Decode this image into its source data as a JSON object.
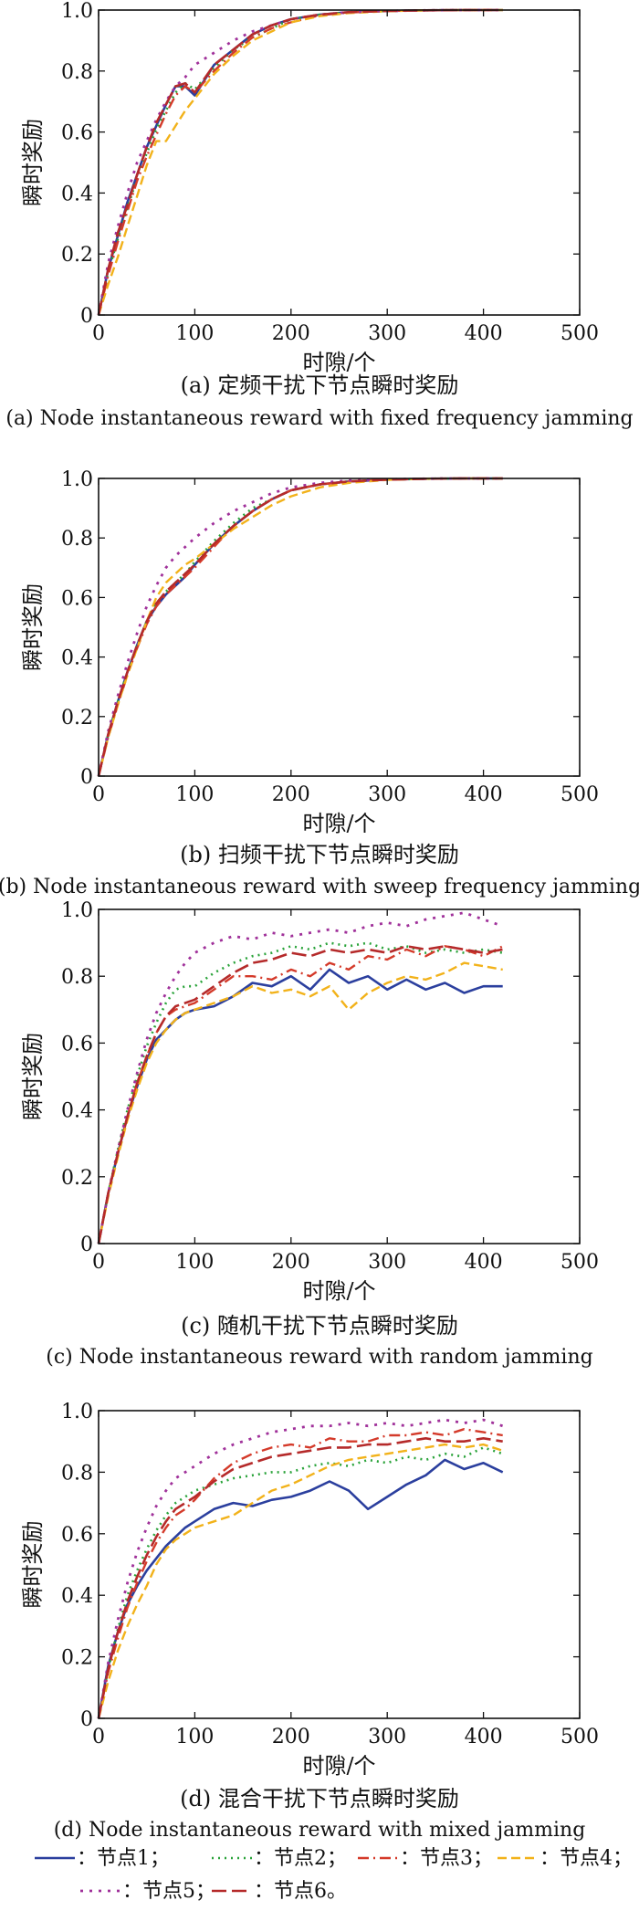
{
  "series_styles": [
    {
      "key": "n1",
      "color": "#2b3f9e",
      "dash": "",
      "width": 2.6
    },
    {
      "key": "n2",
      "color": "#2aa33a",
      "dash": "2,5",
      "width": 2.6
    },
    {
      "key": "n3",
      "color": "#d43a2a",
      "dash": "12,5,2,5",
      "width": 2.4
    },
    {
      "key": "n4",
      "color": "#f2b21a",
      "dash": "10,5",
      "width": 2.4
    },
    {
      "key": "n5",
      "color": "#a0319a",
      "dash": "3,7",
      "width": 2.8
    },
    {
      "key": "n6",
      "color": "#b52a2a",
      "dash": "16,6",
      "width": 2.6
    }
  ],
  "legend": {
    "items": [
      {
        "key": "n1",
        "label": "：节点1；"
      },
      {
        "key": "n2",
        "label": "：节点2；"
      },
      {
        "key": "n3",
        "label": "：节点3；"
      },
      {
        "key": "n4",
        "label": "：节点4；"
      },
      {
        "key": "n5",
        "label": "：节点5；"
      },
      {
        "key": "n6",
        "label": "：节点6。"
      }
    ]
  },
  "chart_data": [
    {
      "type": "line",
      "caption_cn": "(a) 定频干扰下节点瞬时奖励",
      "caption_en": "(a) Node instantaneous reward with fixed frequency jamming",
      "xlabel": "时隙/个",
      "ylabel": "瞬时奖励",
      "xlim": [
        0,
        500
      ],
      "ylim": [
        0,
        1.0
      ],
      "xticks": [
        "0",
        "100",
        "200",
        "300",
        "400",
        "500"
      ],
      "yticks": [
        "0",
        "0.2",
        "0.4",
        "0.6",
        "0.8",
        "1.0"
      ],
      "x": [
        0,
        10,
        20,
        30,
        40,
        50,
        60,
        70,
        80,
        90,
        100,
        120,
        140,
        160,
        180,
        200,
        230,
        260,
        300,
        340,
        380,
        420
      ],
      "series": [
        {
          "key": "n1",
          "values": [
            0.0,
            0.15,
            0.26,
            0.37,
            0.46,
            0.55,
            0.62,
            0.69,
            0.75,
            0.75,
            0.72,
            0.82,
            0.87,
            0.92,
            0.95,
            0.97,
            0.985,
            0.993,
            0.997,
            0.999,
            1.0,
            1.0
          ]
        },
        {
          "key": "n2",
          "values": [
            0.0,
            0.14,
            0.25,
            0.35,
            0.45,
            0.53,
            0.61,
            0.67,
            0.73,
            0.76,
            0.74,
            0.81,
            0.87,
            0.91,
            0.94,
            0.97,
            0.985,
            0.993,
            0.997,
            0.999,
            1.0,
            1.0
          ]
        },
        {
          "key": "n3",
          "values": [
            0.0,
            0.13,
            0.24,
            0.34,
            0.44,
            0.52,
            0.59,
            0.66,
            0.72,
            0.75,
            0.73,
            0.8,
            0.86,
            0.91,
            0.94,
            0.96,
            0.983,
            0.992,
            0.997,
            0.999,
            1.0,
            1.0
          ]
        },
        {
          "key": "n4",
          "values": [
            0.0,
            0.1,
            0.19,
            0.29,
            0.39,
            0.49,
            0.57,
            0.57,
            0.62,
            0.67,
            0.71,
            0.79,
            0.85,
            0.9,
            0.93,
            0.96,
            0.98,
            0.99,
            0.996,
            0.999,
            1.0,
            1.0
          ]
        },
        {
          "key": "n5",
          "values": [
            0.0,
            0.17,
            0.29,
            0.4,
            0.5,
            0.57,
            0.64,
            0.7,
            0.75,
            0.78,
            0.82,
            0.86,
            0.9,
            0.93,
            0.95,
            0.97,
            0.985,
            0.993,
            0.997,
            0.999,
            1.0,
            1.0
          ]
        },
        {
          "key": "n6",
          "values": [
            0.0,
            0.15,
            0.27,
            0.36,
            0.46,
            0.55,
            0.63,
            0.69,
            0.75,
            0.76,
            0.73,
            0.82,
            0.87,
            0.92,
            0.95,
            0.97,
            0.985,
            0.993,
            0.997,
            0.999,
            1.0,
            1.0
          ]
        }
      ]
    },
    {
      "type": "line",
      "caption_cn": "(b) 扫频干扰下节点瞬时奖励",
      "caption_en": "(b) Node instantaneous reward with sweep frequency jamming",
      "xlabel": "时隙/个",
      "ylabel": "瞬时奖励",
      "xlim": [
        0,
        500
      ],
      "ylim": [
        0,
        1.0
      ],
      "xticks": [
        "0",
        "100",
        "200",
        "300",
        "400",
        "500"
      ],
      "yticks": [
        "0",
        "0.2",
        "0.4",
        "0.6",
        "0.8",
        "1.0"
      ],
      "x": [
        0,
        10,
        20,
        30,
        40,
        50,
        60,
        70,
        80,
        90,
        100,
        120,
        140,
        160,
        180,
        200,
        230,
        260,
        300,
        340,
        380,
        420
      ],
      "series": [
        {
          "key": "n1",
          "values": [
            0.0,
            0.14,
            0.25,
            0.35,
            0.44,
            0.52,
            0.57,
            0.61,
            0.64,
            0.67,
            0.71,
            0.78,
            0.84,
            0.89,
            0.93,
            0.96,
            0.98,
            0.99,
            0.996,
            0.999,
            1.0,
            1.0
          ]
        },
        {
          "key": "n2",
          "values": [
            0.0,
            0.14,
            0.25,
            0.35,
            0.44,
            0.52,
            0.58,
            0.62,
            0.65,
            0.68,
            0.72,
            0.79,
            0.85,
            0.9,
            0.93,
            0.96,
            0.98,
            0.99,
            0.996,
            0.999,
            1.0,
            1.0
          ]
        },
        {
          "key": "n3",
          "values": [
            0.0,
            0.13,
            0.24,
            0.34,
            0.43,
            0.51,
            0.57,
            0.61,
            0.64,
            0.67,
            0.7,
            0.77,
            0.84,
            0.89,
            0.93,
            0.96,
            0.98,
            0.99,
            0.996,
            0.999,
            1.0,
            1.0
          ]
        },
        {
          "key": "n4",
          "values": [
            0.0,
            0.13,
            0.24,
            0.34,
            0.43,
            0.52,
            0.6,
            0.65,
            0.68,
            0.71,
            0.73,
            0.78,
            0.83,
            0.87,
            0.91,
            0.94,
            0.97,
            0.985,
            0.995,
            0.999,
            1.0,
            1.0
          ]
        },
        {
          "key": "n5",
          "values": [
            0.0,
            0.15,
            0.27,
            0.38,
            0.48,
            0.57,
            0.64,
            0.7,
            0.74,
            0.77,
            0.8,
            0.85,
            0.89,
            0.92,
            0.95,
            0.97,
            0.985,
            0.993,
            0.997,
            0.999,
            1.0,
            1.0
          ]
        },
        {
          "key": "n6",
          "values": [
            0.0,
            0.14,
            0.25,
            0.35,
            0.44,
            0.52,
            0.58,
            0.62,
            0.65,
            0.68,
            0.71,
            0.78,
            0.84,
            0.89,
            0.93,
            0.96,
            0.98,
            0.99,
            0.996,
            0.999,
            1.0,
            1.0
          ]
        }
      ]
    },
    {
      "type": "line",
      "caption_cn": "(c) 随机干扰下节点瞬时奖励",
      "caption_en": "(c) Node instantaneous reward with random jamming",
      "xlabel": "时隙/个",
      "ylabel": "瞬时奖励",
      "xlim": [
        0,
        500
      ],
      "ylim": [
        0,
        1.0
      ],
      "xticks": [
        "0",
        "100",
        "200",
        "300",
        "400",
        "500"
      ],
      "yticks": [
        "0",
        "0.2",
        "0.4",
        "0.6",
        "0.8",
        "1.0"
      ],
      "x": [
        0,
        10,
        20,
        30,
        40,
        50,
        60,
        70,
        80,
        90,
        100,
        120,
        140,
        160,
        180,
        200,
        220,
        240,
        260,
        280,
        300,
        320,
        340,
        360,
        380,
        400,
        420
      ],
      "series": [
        {
          "key": "n1",
          "values": [
            0.0,
            0.15,
            0.27,
            0.38,
            0.47,
            0.55,
            0.61,
            0.64,
            0.67,
            0.69,
            0.7,
            0.71,
            0.74,
            0.78,
            0.77,
            0.8,
            0.76,
            0.82,
            0.78,
            0.8,
            0.76,
            0.79,
            0.76,
            0.78,
            0.75,
            0.77,
            0.77
          ]
        },
        {
          "key": "n2",
          "values": [
            0.0,
            0.15,
            0.28,
            0.4,
            0.5,
            0.59,
            0.66,
            0.72,
            0.76,
            0.77,
            0.77,
            0.81,
            0.84,
            0.86,
            0.87,
            0.89,
            0.88,
            0.9,
            0.89,
            0.9,
            0.88,
            0.89,
            0.87,
            0.88,
            0.87,
            0.88,
            0.87
          ]
        },
        {
          "key": "n3",
          "values": [
            0.0,
            0.15,
            0.27,
            0.38,
            0.48,
            0.56,
            0.63,
            0.68,
            0.7,
            0.71,
            0.72,
            0.76,
            0.8,
            0.8,
            0.79,
            0.82,
            0.8,
            0.84,
            0.82,
            0.86,
            0.85,
            0.88,
            0.86,
            0.89,
            0.88,
            0.86,
            0.89
          ]
        },
        {
          "key": "n4",
          "values": [
            0.0,
            0.14,
            0.26,
            0.37,
            0.46,
            0.54,
            0.6,
            0.64,
            0.67,
            0.69,
            0.7,
            0.72,
            0.74,
            0.77,
            0.75,
            0.76,
            0.74,
            0.77,
            0.7,
            0.75,
            0.78,
            0.8,
            0.79,
            0.81,
            0.84,
            0.83,
            0.82
          ]
        },
        {
          "key": "n5",
          "values": [
            0.0,
            0.15,
            0.28,
            0.4,
            0.51,
            0.61,
            0.69,
            0.75,
            0.8,
            0.84,
            0.87,
            0.9,
            0.92,
            0.91,
            0.93,
            0.92,
            0.93,
            0.94,
            0.93,
            0.95,
            0.96,
            0.95,
            0.97,
            0.98,
            0.99,
            0.97,
            0.95
          ]
        },
        {
          "key": "n6",
          "values": [
            0.0,
            0.15,
            0.27,
            0.38,
            0.48,
            0.56,
            0.63,
            0.68,
            0.71,
            0.72,
            0.73,
            0.77,
            0.81,
            0.84,
            0.85,
            0.87,
            0.86,
            0.88,
            0.87,
            0.88,
            0.87,
            0.89,
            0.88,
            0.89,
            0.88,
            0.87,
            0.88
          ]
        }
      ]
    },
    {
      "type": "line",
      "caption_cn": "(d) 混合干扰下节点瞬时奖励",
      "caption_en": "(d) Node instantaneous reward with mixed jamming",
      "xlabel": "时隙/个",
      "ylabel": "瞬时奖励",
      "xlim": [
        0,
        500
      ],
      "ylim": [
        0,
        1.0
      ],
      "xticks": [
        "0",
        "100",
        "200",
        "300",
        "400",
        "500"
      ],
      "yticks": [
        "0",
        "0.2",
        "0.4",
        "0.6",
        "0.8",
        "1.0"
      ],
      "x": [
        0,
        10,
        20,
        30,
        40,
        50,
        60,
        70,
        80,
        90,
        100,
        120,
        140,
        160,
        180,
        200,
        220,
        240,
        260,
        280,
        300,
        320,
        340,
        360,
        380,
        400,
        420
      ],
      "series": [
        {
          "key": "n1",
          "values": [
            0.0,
            0.17,
            0.28,
            0.37,
            0.43,
            0.48,
            0.52,
            0.56,
            0.59,
            0.62,
            0.64,
            0.68,
            0.7,
            0.69,
            0.71,
            0.72,
            0.74,
            0.77,
            0.74,
            0.68,
            0.72,
            0.76,
            0.79,
            0.84,
            0.81,
            0.83,
            0.8
          ]
        },
        {
          "key": "n2",
          "values": [
            0.0,
            0.16,
            0.29,
            0.4,
            0.48,
            0.55,
            0.61,
            0.66,
            0.7,
            0.72,
            0.74,
            0.76,
            0.78,
            0.79,
            0.8,
            0.8,
            0.82,
            0.83,
            0.82,
            0.84,
            0.83,
            0.85,
            0.84,
            0.86,
            0.85,
            0.88,
            0.86
          ]
        },
        {
          "key": "n3",
          "values": [
            0.0,
            0.15,
            0.26,
            0.36,
            0.44,
            0.51,
            0.57,
            0.62,
            0.66,
            0.68,
            0.71,
            0.78,
            0.83,
            0.86,
            0.88,
            0.89,
            0.88,
            0.91,
            0.9,
            0.9,
            0.92,
            0.92,
            0.93,
            0.92,
            0.94,
            0.93,
            0.92
          ]
        },
        {
          "key": "n4",
          "values": [
            0.0,
            0.12,
            0.22,
            0.3,
            0.37,
            0.43,
            0.5,
            0.55,
            0.58,
            0.6,
            0.62,
            0.64,
            0.66,
            0.7,
            0.74,
            0.76,
            0.79,
            0.82,
            0.84,
            0.85,
            0.86,
            0.87,
            0.88,
            0.89,
            0.88,
            0.89,
            0.87
          ]
        },
        {
          "key": "n5",
          "values": [
            0.0,
            0.18,
            0.32,
            0.44,
            0.54,
            0.62,
            0.69,
            0.74,
            0.78,
            0.8,
            0.82,
            0.86,
            0.89,
            0.91,
            0.93,
            0.94,
            0.95,
            0.95,
            0.96,
            0.95,
            0.96,
            0.95,
            0.96,
            0.97,
            0.96,
            0.97,
            0.95
          ]
        },
        {
          "key": "n6",
          "values": [
            0.0,
            0.16,
            0.28,
            0.38,
            0.46,
            0.53,
            0.59,
            0.64,
            0.68,
            0.7,
            0.72,
            0.77,
            0.81,
            0.83,
            0.85,
            0.86,
            0.87,
            0.88,
            0.88,
            0.89,
            0.89,
            0.9,
            0.91,
            0.9,
            0.9,
            0.91,
            0.9
          ]
        }
      ]
    }
  ]
}
